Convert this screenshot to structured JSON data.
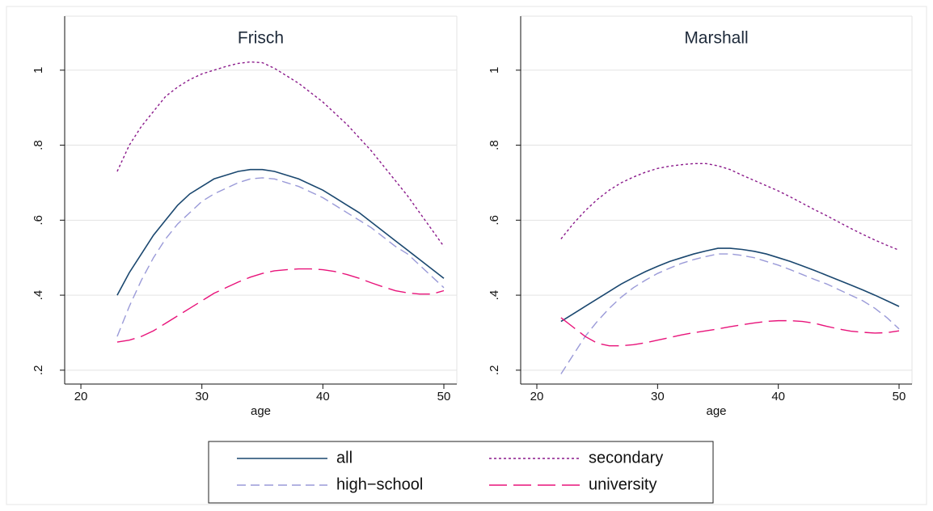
{
  "chart_data": [
    {
      "type": "line",
      "title": "Frisch",
      "x_label": "age",
      "xlim": [
        18.66,
        51.07
      ],
      "ylim": [
        0.163,
        1.144
      ],
      "xticks": [
        20,
        30,
        40,
        50
      ],
      "yticks": [
        {
          "value": 0.2,
          "label": ".2"
        },
        {
          "value": 0.4,
          "label": ".4"
        },
        {
          "value": 0.6,
          "label": ".6"
        },
        {
          "value": 0.8,
          "label": ".8"
        },
        1
      ],
      "grid": true,
      "x": [
        23,
        24,
        25,
        26,
        27,
        28,
        29,
        30,
        31,
        32,
        33,
        34,
        35,
        36,
        37,
        38,
        39,
        40,
        41,
        42,
        43,
        44,
        45,
        46,
        47,
        48,
        49,
        50
      ],
      "series": [
        {
          "name": "all",
          "color": "#1a476f",
          "line_style": "solid",
          "values": [
            0.4,
            0.46,
            0.51,
            0.56,
            0.6,
            0.64,
            0.67,
            0.69,
            0.71,
            0.72,
            0.73,
            0.735,
            0.735,
            0.73,
            0.72,
            0.71,
            0.695,
            0.68,
            0.66,
            0.64,
            0.62,
            0.595,
            0.57,
            0.545,
            0.52,
            0.495,
            0.47,
            0.445
          ]
        },
        {
          "name": "secondary",
          "color": "#8b1a8b",
          "line_style": "dotted",
          "values": [
            0.73,
            0.8,
            0.85,
            0.89,
            0.93,
            0.955,
            0.975,
            0.99,
            1.0,
            1.01,
            1.018,
            1.022,
            1.02,
            1.005,
            0.985,
            0.965,
            0.94,
            0.915,
            0.885,
            0.855,
            0.82,
            0.785,
            0.745,
            0.705,
            0.665,
            0.62,
            0.575,
            0.53
          ]
        },
        {
          "name": "high−school",
          "color": "#9a9ad8",
          "line_style": "dashed",
          "values": [
            0.29,
            0.37,
            0.44,
            0.5,
            0.55,
            0.59,
            0.62,
            0.65,
            0.67,
            0.685,
            0.7,
            0.71,
            0.713,
            0.71,
            0.7,
            0.69,
            0.675,
            0.66,
            0.64,
            0.62,
            0.6,
            0.58,
            0.555,
            0.53,
            0.51,
            0.48,
            0.45,
            0.42
          ]
        },
        {
          "name": "university",
          "color": "#e8137a",
          "line_style": "longdash",
          "values": [
            0.275,
            0.28,
            0.29,
            0.305,
            0.325,
            0.345,
            0.365,
            0.385,
            0.405,
            0.42,
            0.435,
            0.448,
            0.458,
            0.465,
            0.468,
            0.47,
            0.47,
            0.468,
            0.463,
            0.455,
            0.445,
            0.433,
            0.422,
            0.412,
            0.406,
            0.403,
            0.403,
            0.412
          ]
        }
      ]
    },
    {
      "type": "line",
      "title": "Marshall",
      "x_label": "age",
      "xlim": [
        18.66,
        51.07
      ],
      "ylim": [
        0.163,
        1.144
      ],
      "xticks": [
        20,
        30,
        40,
        50
      ],
      "yticks": [
        {
          "value": 0.2,
          "label": ".2"
        },
        {
          "value": 0.4,
          "label": ".4"
        },
        {
          "value": 0.6,
          "label": ".6"
        },
        {
          "value": 0.8,
          "label": ".8"
        },
        1
      ],
      "grid": true,
      "x": [
        22,
        23,
        24,
        25,
        26,
        27,
        28,
        29,
        30,
        31,
        32,
        33,
        34,
        35,
        36,
        37,
        38,
        39,
        40,
        41,
        42,
        43,
        44,
        45,
        46,
        47,
        48,
        49,
        50
      ],
      "series": [
        {
          "name": "all",
          "color": "#1a476f",
          "line_style": "solid",
          "values": [
            0.33,
            0.35,
            0.37,
            0.39,
            0.41,
            0.43,
            0.447,
            0.463,
            0.477,
            0.49,
            0.5,
            0.51,
            0.518,
            0.525,
            0.525,
            0.522,
            0.517,
            0.51,
            0.5,
            0.49,
            0.478,
            0.466,
            0.453,
            0.44,
            0.427,
            0.414,
            0.4,
            0.385,
            0.37
          ]
        },
        {
          "name": "secondary",
          "color": "#8b1a8b",
          "line_style": "dotted",
          "values": [
            0.55,
            0.59,
            0.625,
            0.655,
            0.68,
            0.7,
            0.715,
            0.728,
            0.738,
            0.744,
            0.748,
            0.751,
            0.751,
            0.745,
            0.735,
            0.72,
            0.706,
            0.692,
            0.678,
            0.662,
            0.645,
            0.628,
            0.612,
            0.595,
            0.578,
            0.562,
            0.547,
            0.533,
            0.52
          ]
        },
        {
          "name": "high−school",
          "color": "#9a9ad8",
          "line_style": "dashed",
          "values": [
            0.19,
            0.24,
            0.29,
            0.33,
            0.365,
            0.395,
            0.42,
            0.44,
            0.458,
            0.472,
            0.485,
            0.495,
            0.503,
            0.51,
            0.51,
            0.506,
            0.5,
            0.49,
            0.48,
            0.468,
            0.455,
            0.442,
            0.43,
            0.415,
            0.4,
            0.385,
            0.365,
            0.34,
            0.31
          ]
        },
        {
          "name": "university",
          "color": "#e8137a",
          "line_style": "longdash",
          "values": [
            0.34,
            0.315,
            0.29,
            0.272,
            0.265,
            0.265,
            0.268,
            0.273,
            0.28,
            0.287,
            0.294,
            0.3,
            0.305,
            0.31,
            0.316,
            0.321,
            0.326,
            0.33,
            0.332,
            0.332,
            0.33,
            0.325,
            0.317,
            0.31,
            0.304,
            0.301,
            0.299,
            0.3,
            0.305
          ]
        }
      ]
    }
  ]
}
